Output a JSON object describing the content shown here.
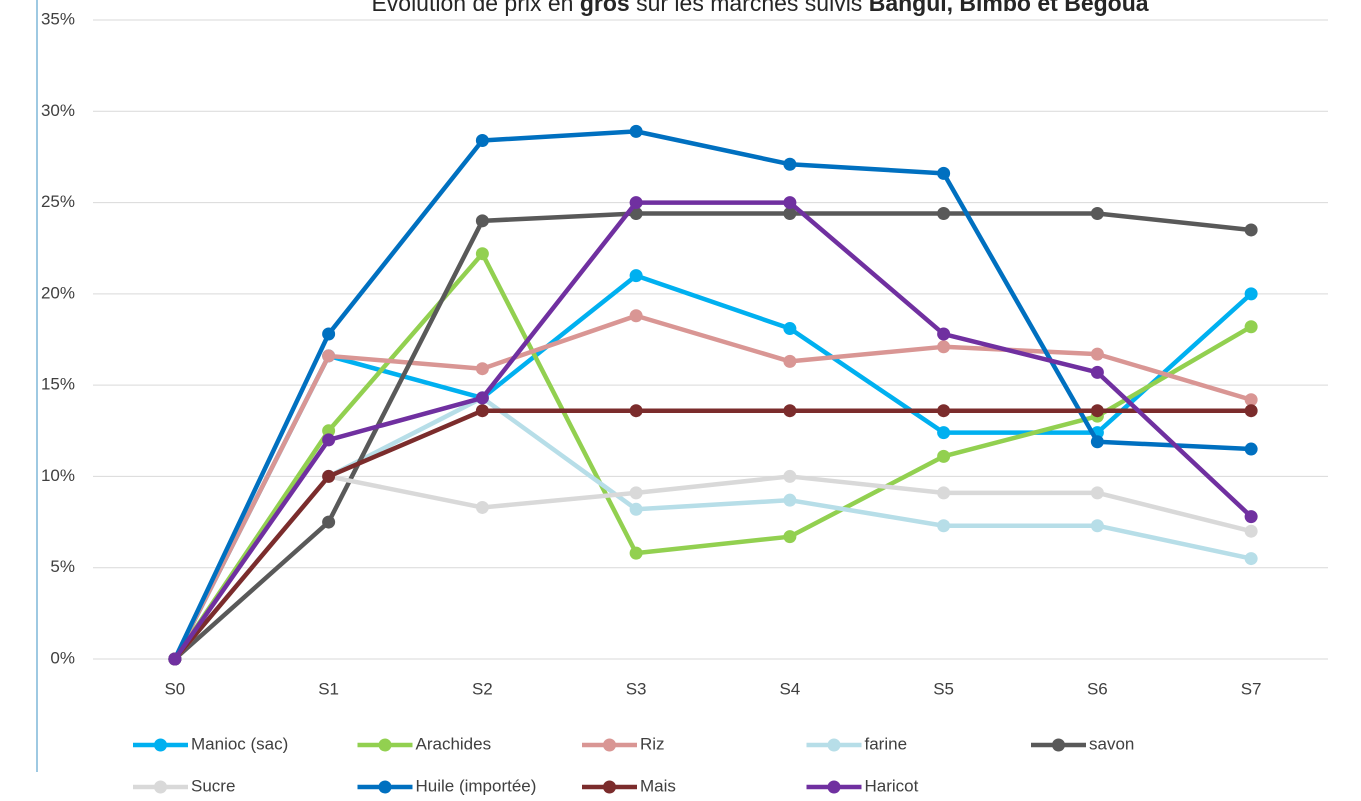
{
  "chart_data": {
    "type": "line",
    "title_parts": [
      {
        "text": "Evolution de prix en ",
        "bold": false
      },
      {
        "text": "gros",
        "bold": true
      },
      {
        "text": " sur les marchés suivis ",
        "bold": false
      },
      {
        "text": "Bangui, Bimbo et Bégoua",
        "bold": true
      }
    ],
    "categories": [
      "S0",
      "S1",
      "S2",
      "S3",
      "S4",
      "S5",
      "S6",
      "S7"
    ],
    "ylim": [
      0,
      35
    ],
    "yticks": [
      {
        "value": 0,
        "label": "0%"
      },
      {
        "value": 5,
        "label": "5%"
      },
      {
        "value": 10,
        "label": "10%"
      },
      {
        "value": 15,
        "label": "15%"
      },
      {
        "value": 20,
        "label": "20%"
      },
      {
        "value": 25,
        "label": "25%"
      },
      {
        "value": 30,
        "label": "30%"
      },
      {
        "value": 35,
        "label": "35%"
      }
    ],
    "grid": true,
    "legend": "bottom",
    "series": [
      {
        "name": "Manioc (sac)",
        "color": "#00b0f0",
        "values": [
          0,
          16.6,
          14.3,
          21.0,
          18.1,
          12.4,
          12.4,
          20.0
        ]
      },
      {
        "name": "Arachides",
        "color": "#92d050",
        "values": [
          0,
          12.5,
          22.2,
          5.8,
          6.7,
          11.1,
          13.3,
          18.2
        ]
      },
      {
        "name": "Riz",
        "color": "#d99694",
        "values": [
          0,
          16.6,
          15.9,
          18.8,
          16.3,
          17.1,
          16.7,
          14.2
        ]
      },
      {
        "name": "farine",
        "color": "#b7dee8",
        "values": [
          0,
          10.0,
          14.3,
          8.2,
          8.7,
          7.3,
          7.3,
          5.5
        ]
      },
      {
        "name": "savon",
        "color": "#595959",
        "values": [
          0,
          7.5,
          24.0,
          24.4,
          24.4,
          24.4,
          24.4,
          23.5
        ]
      },
      {
        "name": "Sucre",
        "color": "#d9d9d9",
        "values": [
          0,
          10.0,
          8.3,
          9.1,
          10.0,
          9.1,
          9.1,
          7.0
        ]
      },
      {
        "name": "Huile (importée)",
        "color": "#0070c0",
        "values": [
          0,
          17.8,
          28.4,
          28.9,
          27.1,
          26.6,
          11.9,
          11.5
        ]
      },
      {
        "name": "Mais",
        "color": "#7b2c2c",
        "values": [
          0,
          10.0,
          13.6,
          13.6,
          13.6,
          13.6,
          13.6,
          13.6
        ]
      },
      {
        "name": "Haricot",
        "color": "#7030a0",
        "values": [
          0,
          12.0,
          14.3,
          25.0,
          25.0,
          17.8,
          15.7,
          7.8
        ]
      }
    ]
  }
}
